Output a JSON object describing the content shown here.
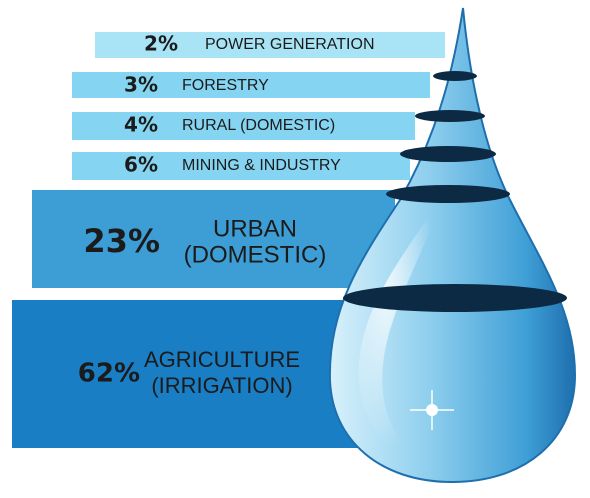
{
  "items": [
    {
      "percent": "2%",
      "label": [
        "POWER GENERATION"
      ]
    },
    {
      "percent": "3%",
      "label": [
        "FORESTRY"
      ]
    },
    {
      "percent": "4%",
      "label": [
        "RURAL (DOMESTIC)"
      ]
    },
    {
      "percent": "6%",
      "label": [
        "MINING & INDUSTRY"
      ]
    },
    {
      "percent": "23%",
      "label": [
        "URBAN",
        "(DOMESTIC)"
      ]
    },
    {
      "percent": "62%",
      "label": [
        "AGRICULTURE",
        "(IRRIGATION)"
      ]
    }
  ]
}
